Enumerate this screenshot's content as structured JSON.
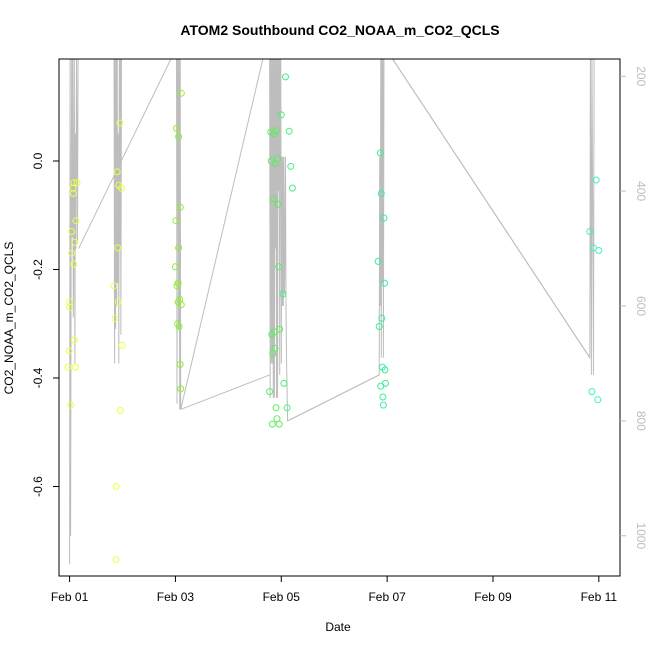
{
  "chart_data": {
    "type": "scatter",
    "title": "ATOM2 Southbound CO2_NOAA_m_CO2_QCLS",
    "xlabel": "Date",
    "ylabel": "CO2_NOAA_m_CO2_QCLS",
    "x_unit": "days since Feb 01",
    "xlim": [
      -0.2,
      10.4
    ],
    "ylim": [
      -0.765,
      0.188
    ],
    "right_ylim": [
      1070,
      170
    ],
    "x_ticks": [
      {
        "v": 0,
        "label": "Feb 01"
      },
      {
        "v": 2,
        "label": "Feb 03"
      },
      {
        "v": 4,
        "label": "Feb 05"
      },
      {
        "v": 6,
        "label": "Feb 07"
      },
      {
        "v": 8,
        "label": "Feb 09"
      },
      {
        "v": 10,
        "label": "Feb 11"
      }
    ],
    "y_ticks": [
      {
        "v": -0.6,
        "label": "-0.6"
      },
      {
        "v": -0.4,
        "label": "-0.4"
      },
      {
        "v": -0.2,
        "label": "-0.2"
      },
      {
        "v": 0.0,
        "label": "0.0"
      }
    ],
    "right_ticks": [
      {
        "v": 200,
        "label": "200"
      },
      {
        "v": 400,
        "label": "400"
      },
      {
        "v": 600,
        "label": "600"
      },
      {
        "v": 800,
        "label": "800"
      },
      {
        "v": 1000,
        "label": "1000"
      }
    ],
    "colors": {
      "flight1": "#eeff44",
      "flight2": "#90ee30",
      "flight3": "#5cee5c",
      "flight4": "#48ee80",
      "flight5": "#38f098",
      "flight6": "#40f0c8",
      "pressure_line": "#bdbdbd"
    },
    "series": [
      {
        "color_key": "flight1",
        "points": [
          [
            -0.03,
            -0.38
          ],
          [
            -0.01,
            -0.35
          ],
          [
            0.0,
            -0.26
          ],
          [
            0.0,
            -0.27
          ],
          [
            0.02,
            -0.45
          ],
          [
            0.04,
            -0.17
          ],
          [
            0.04,
            -0.13
          ],
          [
            0.06,
            -0.05
          ],
          [
            0.07,
            -0.06
          ],
          [
            0.08,
            -0.04
          ],
          [
            0.08,
            -0.19
          ],
          [
            0.09,
            -0.33
          ],
          [
            0.1,
            -0.15
          ],
          [
            0.11,
            -0.38
          ],
          [
            0.12,
            -0.11
          ],
          [
            0.14,
            -0.04
          ],
          [
            0.84,
            -0.23
          ],
          [
            0.86,
            -0.29
          ],
          [
            0.88,
            -0.6
          ],
          [
            0.88,
            -0.735
          ],
          [
            0.9,
            -0.02
          ],
          [
            0.91,
            -0.16
          ],
          [
            0.92,
            -0.26
          ],
          [
            0.93,
            -0.045
          ],
          [
            0.95,
            0.07
          ],
          [
            0.96,
            -0.46
          ],
          [
            0.98,
            -0.05
          ],
          [
            0.99,
            -0.34
          ]
        ]
      },
      {
        "color_key": "flight2",
        "points": [
          [
            2.0,
            -0.195
          ],
          [
            2.01,
            -0.11
          ],
          [
            2.02,
            0.06
          ],
          [
            2.03,
            -0.23
          ],
          [
            2.04,
            -0.3
          ],
          [
            2.05,
            -0.225
          ],
          [
            2.05,
            -0.26
          ],
          [
            2.06,
            0.045
          ],
          [
            2.06,
            -0.16
          ],
          [
            2.07,
            -0.305
          ],
          [
            2.08,
            -0.255
          ],
          [
            2.09,
            -0.085
          ],
          [
            2.09,
            -0.375
          ],
          [
            2.1,
            -0.42
          ],
          [
            2.11,
            0.125
          ],
          [
            2.11,
            -0.265
          ]
        ]
      },
      {
        "color_key": "flight3",
        "points": [
          [
            3.78,
            -0.425
          ],
          [
            3.8,
            0.053
          ],
          [
            3.81,
            0.0
          ],
          [
            3.82,
            -0.32
          ],
          [
            3.83,
            -0.485
          ],
          [
            3.84,
            -0.355
          ],
          [
            3.85,
            -0.07
          ],
          [
            3.86,
            0.05
          ],
          [
            3.87,
            -0.315
          ],
          [
            3.88,
            -0.345
          ],
          [
            3.89,
            -0.005
          ],
          [
            3.9,
            -0.455
          ],
          [
            3.91,
            0.056
          ],
          [
            3.92,
            -0.475
          ],
          [
            3.93,
            0.005
          ],
          [
            3.94,
            -0.08
          ],
          [
            3.95,
            -0.195
          ],
          [
            3.96,
            -0.485
          ],
          [
            3.97,
            -0.31
          ]
        ]
      },
      {
        "color_key": "flight4",
        "points": [
          [
            4.0,
            0.085
          ],
          [
            4.03,
            -0.245
          ],
          [
            4.05,
            -0.41
          ],
          [
            4.08,
            0.155
          ],
          [
            4.11,
            -0.455
          ],
          [
            4.15,
            0.055
          ],
          [
            4.18,
            -0.01
          ],
          [
            4.21,
            -0.05
          ]
        ]
      },
      {
        "color_key": "flight5",
        "points": [
          [
            5.83,
            -0.185
          ],
          [
            5.85,
            -0.305
          ],
          [
            5.87,
            0.015
          ],
          [
            5.88,
            -0.415
          ],
          [
            5.89,
            -0.06
          ],
          [
            5.9,
            -0.29
          ],
          [
            5.91,
            -0.38
          ],
          [
            5.92,
            -0.435
          ],
          [
            5.93,
            -0.45
          ],
          [
            5.94,
            -0.105
          ],
          [
            5.95,
            -0.225
          ],
          [
            5.96,
            -0.385
          ],
          [
            5.97,
            -0.41
          ]
        ]
      },
      {
        "color_key": "flight6",
        "points": [
          [
            9.83,
            -0.13
          ],
          [
            9.87,
            -0.425
          ],
          [
            9.9,
            -0.16
          ],
          [
            9.95,
            -0.035
          ],
          [
            9.98,
            -0.44
          ],
          [
            10.0,
            -0.165
          ]
        ]
      }
    ],
    "pressure_path": [
      [
        0.0,
        1050
      ],
      [
        0.01,
        120
      ],
      [
        0.02,
        1000
      ],
      [
        0.03,
        440
      ],
      [
        0.04,
        150
      ],
      [
        0.05,
        480
      ],
      [
        0.06,
        140
      ],
      [
        0.07,
        620
      ],
      [
        0.08,
        480
      ],
      [
        0.09,
        150
      ],
      [
        0.1,
        700
      ],
      [
        0.11,
        300
      ],
      [
        0.12,
        500
      ],
      [
        0.13,
        150
      ],
      [
        0.15,
        490
      ],
      [
        0.16,
        150
      ],
      [
        0.17,
        150
      ],
      [
        0.84,
        150
      ],
      [
        0.85,
        700
      ],
      [
        0.86,
        150
      ],
      [
        0.87,
        640
      ],
      [
        0.88,
        150
      ],
      [
        0.89,
        600
      ],
      [
        0.9,
        150
      ],
      [
        0.91,
        560
      ],
      [
        0.92,
        300
      ],
      [
        0.93,
        700
      ],
      [
        0.94,
        150
      ],
      [
        0.95,
        500
      ],
      [
        0.96,
        150
      ],
      [
        0.97,
        650
      ],
      [
        0.98,
        150
      ],
      [
        0.99,
        150
      ],
      [
        2.02,
        150
      ],
      [
        2.03,
        770
      ],
      [
        2.04,
        150
      ],
      [
        2.05,
        150
      ],
      [
        2.06,
        640
      ],
      [
        2.07,
        150
      ],
      [
        2.08,
        780
      ],
      [
        2.09,
        150
      ],
      [
        2.1,
        780
      ],
      [
        3.78,
        120
      ],
      [
        3.79,
        760
      ],
      [
        3.8,
        150
      ],
      [
        3.81,
        700
      ],
      [
        3.82,
        150
      ],
      [
        3.83,
        700
      ],
      [
        3.84,
        150
      ],
      [
        3.85,
        760
      ],
      [
        3.86,
        150
      ],
      [
        3.87,
        760
      ],
      [
        3.88,
        150
      ],
      [
        3.89,
        500
      ],
      [
        3.9,
        150
      ],
      [
        3.91,
        760
      ],
      [
        3.92,
        150
      ],
      [
        3.93,
        760
      ],
      [
        3.94,
        150
      ],
      [
        3.95,
        400
      ],
      [
        3.96,
        150
      ],
      [
        3.97,
        720
      ],
      [
        3.98,
        150
      ],
      [
        3.99,
        150
      ],
      [
        4.0,
        700
      ],
      [
        4.01,
        340
      ],
      [
        4.02,
        600
      ],
      [
        4.03,
        340
      ],
      [
        4.04,
        600
      ],
      [
        4.05,
        340
      ],
      [
        4.06,
        580
      ],
      [
        4.07,
        500
      ],
      [
        4.08,
        340
      ],
      [
        4.09,
        600
      ],
      [
        4.1,
        700
      ],
      [
        4.12,
        800
      ],
      [
        5.85,
        720
      ],
      [
        5.86,
        340
      ],
      [
        5.87,
        600
      ],
      [
        5.88,
        150
      ],
      [
        5.89,
        690
      ],
      [
        5.9,
        150
      ],
      [
        5.91,
        560
      ],
      [
        5.92,
        150
      ],
      [
        5.93,
        690
      ],
      [
        5.94,
        150
      ],
      [
        5.95,
        150
      ],
      [
        5.96,
        150
      ],
      [
        9.83,
        690
      ],
      [
        9.84,
        150
      ],
      [
        9.86,
        720
      ],
      [
        9.87,
        150
      ],
      [
        9.9,
        720
      ],
      [
        9.91,
        150
      ]
    ],
    "pressure_connect": [
      [
        [
          0.17,
          500
        ],
        [
          2.02,
          150
        ]
      ],
      [
        [
          2.06,
          150
        ],
        [
          2.7,
          120
        ]
      ],
      [
        [
          2.1,
          780
        ],
        [
          3.78,
          720
        ]
      ],
      [
        [
          3.99,
          150
        ],
        [
          4.3,
          120
        ]
      ],
      [
        [
          4.12,
          800
        ],
        [
          5.85,
          720
        ]
      ],
      [
        [
          5.96,
          150
        ],
        [
          9.83,
          690
        ]
      ]
    ]
  }
}
